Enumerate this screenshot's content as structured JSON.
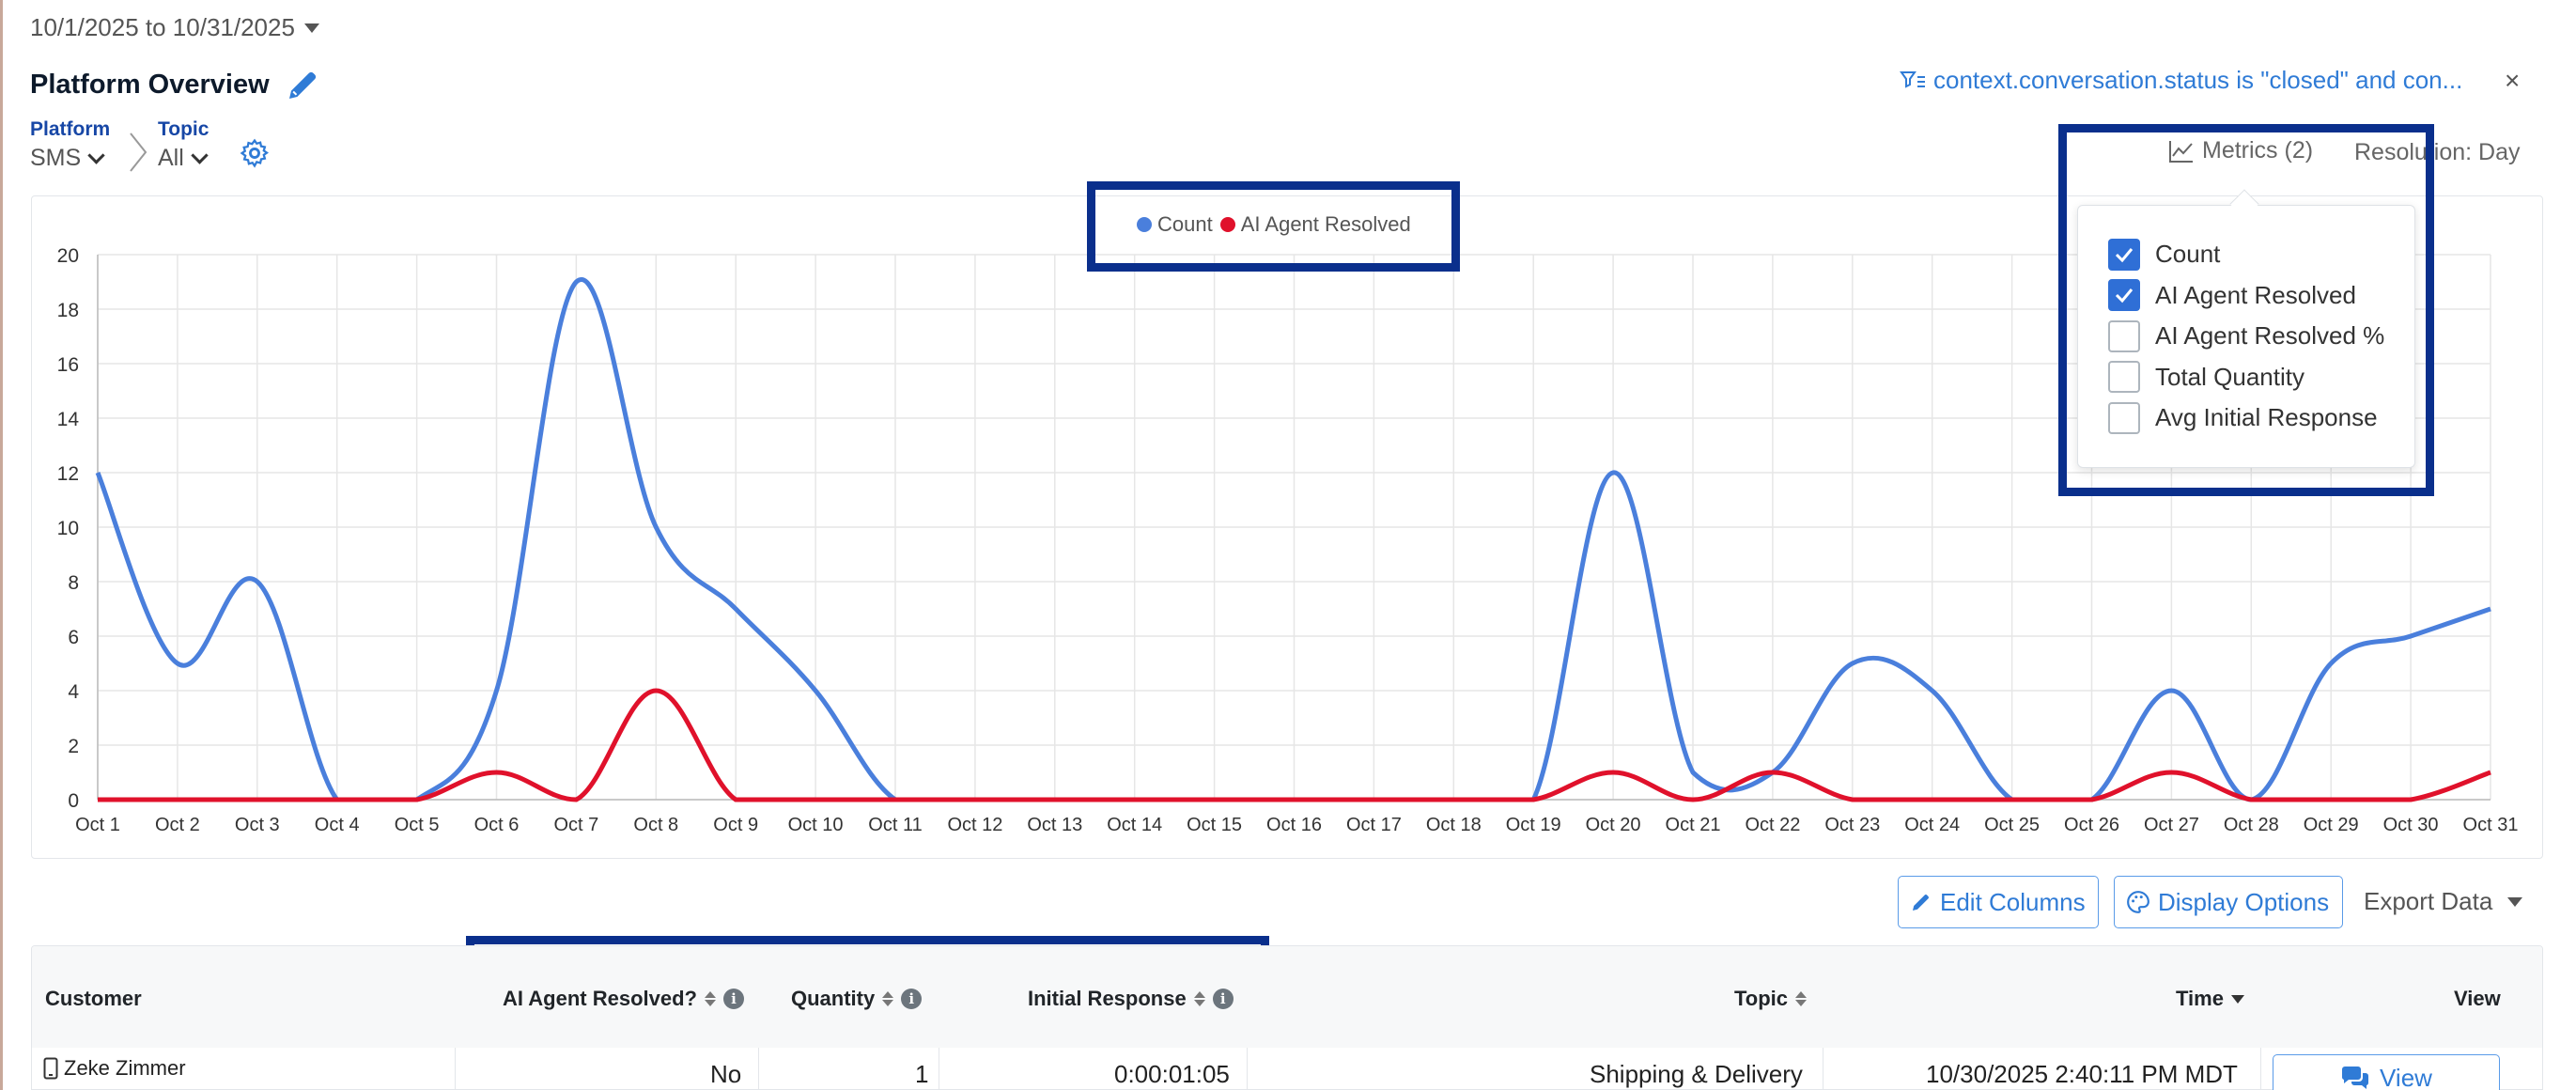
{
  "header": {
    "date_range": "10/1/2025 to 10/31/2025",
    "page_title": "Platform Overview",
    "filter_text": "context.conversation.status is \"closed\" and con...",
    "close_label": "×"
  },
  "breadcrumb": {
    "platform_label": "Platform",
    "platform_value": "SMS",
    "topic_label": "Topic",
    "topic_value": "All"
  },
  "toolbar": {
    "metrics_label": "Metrics (2)",
    "resolution_label": "Resolution: Day"
  },
  "metrics_menu": {
    "items": [
      {
        "label": "Count",
        "checked": true
      },
      {
        "label": "AI Agent Resolved",
        "checked": true
      },
      {
        "label": "AI Agent Resolved %",
        "checked": false
      },
      {
        "label": "Total Quantity",
        "checked": false
      },
      {
        "label": "Avg Initial Response",
        "checked": false
      }
    ]
  },
  "chart_data": {
    "type": "line",
    "x": [
      "Oct 1",
      "Oct 2",
      "Oct 3",
      "Oct 4",
      "Oct 5",
      "Oct 6",
      "Oct 7",
      "Oct 8",
      "Oct 9",
      "Oct 10",
      "Oct 11",
      "Oct 12",
      "Oct 13",
      "Oct 14",
      "Oct 15",
      "Oct 16",
      "Oct 17",
      "Oct 18",
      "Oct 19",
      "Oct 20",
      "Oct 21",
      "Oct 22",
      "Oct 23",
      "Oct 24",
      "Oct 25",
      "Oct 26",
      "Oct 27",
      "Oct 28",
      "Oct 29",
      "Oct 30",
      "Oct 31"
    ],
    "series": [
      {
        "name": "Count",
        "color": "#4a7fdc",
        "values": [
          12,
          5,
          8,
          0,
          0,
          4,
          19,
          10,
          7,
          4,
          0,
          0,
          0,
          0,
          0,
          0,
          0,
          0,
          0,
          12,
          1,
          1,
          5,
          4,
          0,
          0,
          4,
          0,
          5,
          6,
          7
        ]
      },
      {
        "name": "AI Agent Resolved",
        "color": "#e0112b",
        "values": [
          0,
          0,
          0,
          0,
          0,
          1,
          0,
          4,
          0,
          0,
          0,
          0,
          0,
          0,
          0,
          0,
          0,
          0,
          0,
          1,
          0,
          1,
          0,
          0,
          0,
          0,
          1,
          0,
          0,
          0,
          1
        ]
      }
    ],
    "yticks": [
      0,
      2,
      4,
      6,
      8,
      10,
      12,
      14,
      16,
      18,
      20
    ],
    "ylim": [
      0,
      20
    ],
    "grid": true,
    "legend": "top-center"
  },
  "actions": {
    "edit_columns": "Edit Columns",
    "display_options": "Display Options",
    "export_data": "Export Data"
  },
  "table": {
    "headers": {
      "customer": "Customer",
      "ai_resolved": "AI Agent Resolved?",
      "quantity": "Quantity",
      "initial_response": "Initial Response",
      "topic": "Topic",
      "time": "Time",
      "view": "View"
    },
    "rows": [
      {
        "customer": "Zeke Zimmer",
        "ai_resolved": "No",
        "quantity": "1",
        "initial_response": "0:00:01:05",
        "topic": "Shipping & Delivery",
        "time": "10/30/2025 2:40:11 PM MDT",
        "view_label": "View"
      }
    ]
  }
}
